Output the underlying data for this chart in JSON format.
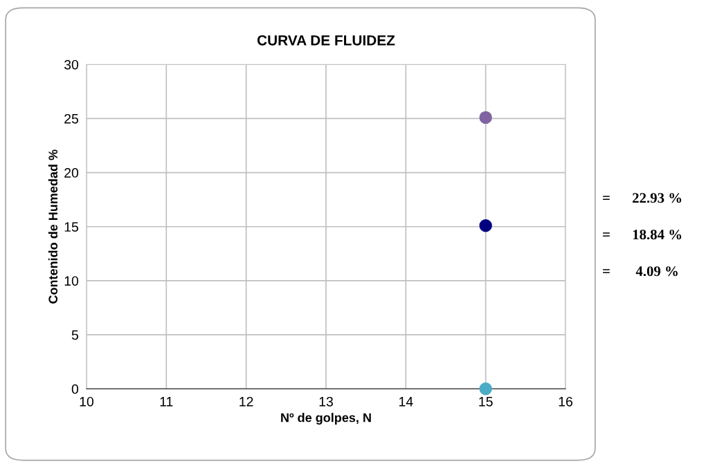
{
  "chart_data": {
    "type": "scatter",
    "title": "CURVA DE FLUIDEZ",
    "xlabel": "Nº de golpes, N",
    "ylabel": "Contenido de Humedad %",
    "x": [
      15
    ],
    "series": [
      {
        "color": "#8064a2",
        "values": [
          25.1
        ]
      },
      {
        "color": "#000080",
        "values": [
          15.1
        ]
      },
      {
        "color": "#4bacc6",
        "values": [
          0
        ]
      }
    ],
    "xlim": [
      10,
      16
    ],
    "xticks": [
      10,
      11,
      12,
      13,
      14,
      15,
      16
    ],
    "ylim": [
      0,
      30
    ],
    "yticks": [
      0,
      5,
      10,
      15,
      20,
      25,
      30
    ],
    "grid": true,
    "marker": "circle",
    "annotations": [
      "=      22.93 %",
      "=      18.84 %",
      "=       4.09 %"
    ]
  }
}
